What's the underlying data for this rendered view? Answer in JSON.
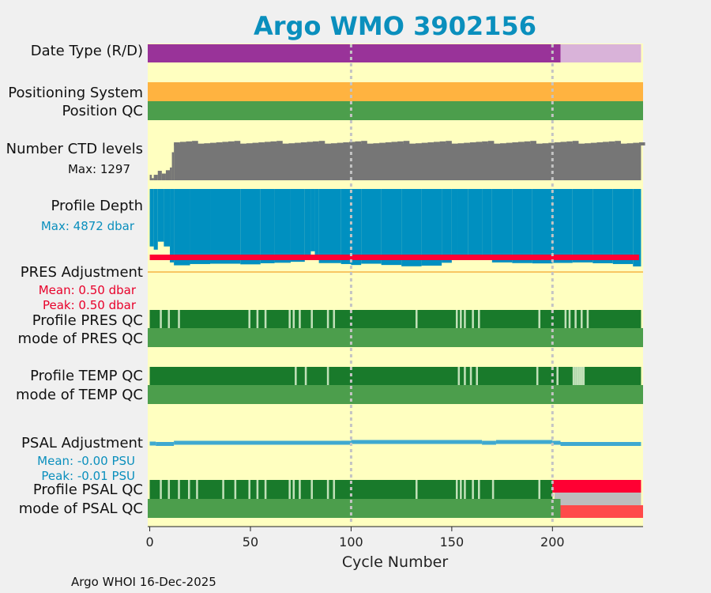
{
  "page": {
    "title": "Argo WMO 3902156",
    "footer": "Argo WHOI 16-Dec-2025"
  },
  "labels": {
    "date_type": "Date Type (R/D)",
    "positioning_system": "Positioning System",
    "position_qc": "Position QC",
    "n_ctd": "Number CTD levels",
    "n_ctd_max": "Max: 1297",
    "profile_depth": "Profile Depth",
    "profile_depth_max": "Max: 4872 dbar",
    "pres_adj": "PRES Adjustment",
    "pres_adj_mean": "Mean: 0.50 dbar",
    "pres_adj_peak": "Peak: 0.50 dbar",
    "profile_pres_qc": "Profile PRES QC",
    "mode_pres_qc": "mode of PRES QC",
    "profile_temp_qc": "Profile TEMP QC",
    "mode_temp_qc": "mode of TEMP QC",
    "psal_adj": "PSAL Adjustment",
    "psal_adj_mean": "Mean: -0.00 PSU",
    "psal_adj_peak": "Peak: -0.01 PSU",
    "profile_psal_qc": "Profile PSAL QC",
    "mode_psal_qc": "mode of PSAL QC"
  },
  "colors": {
    "background": "#f0f0f0",
    "plot_bg": "#ffffc0",
    "title": "#0a8fbd",
    "real_time": "#993399",
    "delayed": "#d9b3d9",
    "positioning": "#ffb340",
    "qc_good": "#4c9e4c",
    "profile_qc_dark": "#197a2b",
    "profile_qc_light": "#c1e0b8",
    "ctd_gray": "#767676",
    "depth_blue": "#0090c0",
    "pres_adj_red": "#ff0033",
    "psal_adj_blue": "#3fa9d0",
    "psal_qc_red": "#ff0033",
    "psal_qc_gray": "#bdbdbd",
    "psal_mode_red": "#ff4a4a",
    "mean_line": "#f5b342",
    "vline": "#c4c4c4"
  },
  "chart_data": {
    "type": "qc_timeline",
    "title": "Argo WMO 3902156",
    "xlabel": "Cycle Number",
    "xlim": [
      -1,
      245
    ],
    "xticks": [
      0,
      50,
      100,
      150,
      200
    ],
    "vlines": [
      100,
      200
    ],
    "n_cycles": 244,
    "date_type": {
      "real_time": [
        0,
        204
      ],
      "delayed": [
        204,
        244
      ]
    },
    "positioning_system": "all",
    "position_qc": "all good",
    "ctd_levels": {
      "max": 1297,
      "segments": [
        [
          0,
          1,
          180
        ],
        [
          1,
          2,
          70
        ],
        [
          2,
          4,
          180
        ],
        [
          4,
          6,
          310
        ],
        [
          6,
          8,
          220
        ],
        [
          8,
          10,
          330
        ],
        [
          10,
          11,
          420
        ],
        [
          11,
          12,
          920
        ],
        [
          12,
          244,
          1200
        ]
      ]
    },
    "profile_depth": {
      "max_dbar": 4872,
      "segments": [
        [
          0,
          2,
          3600
        ],
        [
          2,
          4,
          3800
        ],
        [
          4,
          7,
          3300
        ],
        [
          7,
          10,
          3600
        ],
        [
          10,
          12,
          4600
        ],
        [
          12,
          20,
          4780
        ],
        [
          20,
          30,
          4700
        ],
        [
          30,
          45,
          4680
        ],
        [
          45,
          55,
          4720
        ],
        [
          55,
          62,
          4650
        ],
        [
          62,
          70,
          4620
        ],
        [
          70,
          77,
          4560
        ],
        [
          77,
          80,
          4300
        ],
        [
          80,
          82,
          3900
        ],
        [
          82,
          84,
          4400
        ],
        [
          84,
          95,
          4640
        ],
        [
          95,
          100,
          4700
        ],
        [
          100,
          105,
          4760
        ],
        [
          105,
          115,
          4680
        ],
        [
          115,
          125,
          4760
        ],
        [
          125,
          135,
          4840
        ],
        [
          135,
          145,
          4800
        ],
        [
          145,
          150,
          4620
        ],
        [
          150,
          153,
          4300
        ],
        [
          153,
          158,
          4250
        ],
        [
          158,
          165,
          4350
        ],
        [
          165,
          170,
          4300
        ],
        [
          170,
          180,
          4600
        ],
        [
          180,
          190,
          4640
        ],
        [
          190,
          200,
          4660
        ],
        [
          200,
          210,
          4630
        ],
        [
          210,
          220,
          4600
        ],
        [
          220,
          230,
          4650
        ],
        [
          230,
          240,
          4700
        ],
        [
          240,
          244,
          4850
        ]
      ]
    },
    "pres_adjustment": {
      "mean_dbar": 0.5,
      "peak_dbar": 0.5,
      "cycles": [
        0,
        243
      ]
    },
    "profile_pres_qc": {
      "partial_cycles": [
        5,
        9,
        14,
        49,
        53,
        57,
        69,
        71,
        74,
        80,
        88,
        91,
        132,
        152,
        154,
        156,
        160,
        163,
        193,
        206,
        208,
        211,
        214,
        217
      ]
    },
    "mode_pres_qc": "all good",
    "profile_temp_qc": {
      "partial_cycles": [
        72,
        77,
        88,
        153,
        156,
        159,
        162,
        192,
        202,
        210,
        211,
        212,
        213,
        214,
        215
      ]
    },
    "mode_temp_qc": "all good",
    "psal_adjustment": {
      "mean_psu": -0.0,
      "peak_psu": -0.01,
      "segments": [
        [
          0,
          3,
          -0.006
        ],
        [
          3,
          12,
          -0.007
        ],
        [
          12,
          100,
          -0.004
        ],
        [
          100,
          165,
          -0.002
        ],
        [
          165,
          172,
          -0.004
        ],
        [
          172,
          200,
          -0.002
        ],
        [
          200,
          204,
          -0.004
        ],
        [
          204,
          244,
          -0.007
        ]
      ]
    },
    "profile_psal_qc": {
      "partial_cycles": [
        5,
        9,
        14,
        19,
        23,
        36,
        42,
        49,
        53,
        57,
        69,
        71,
        74,
        80,
        88,
        91,
        132,
        152,
        154,
        156,
        160,
        163,
        170,
        193
      ],
      "bad_from_cycle": 200
    },
    "mode_psal_qc": {
      "good": [
        0,
        204
      ],
      "bad": [
        204,
        244
      ]
    }
  }
}
